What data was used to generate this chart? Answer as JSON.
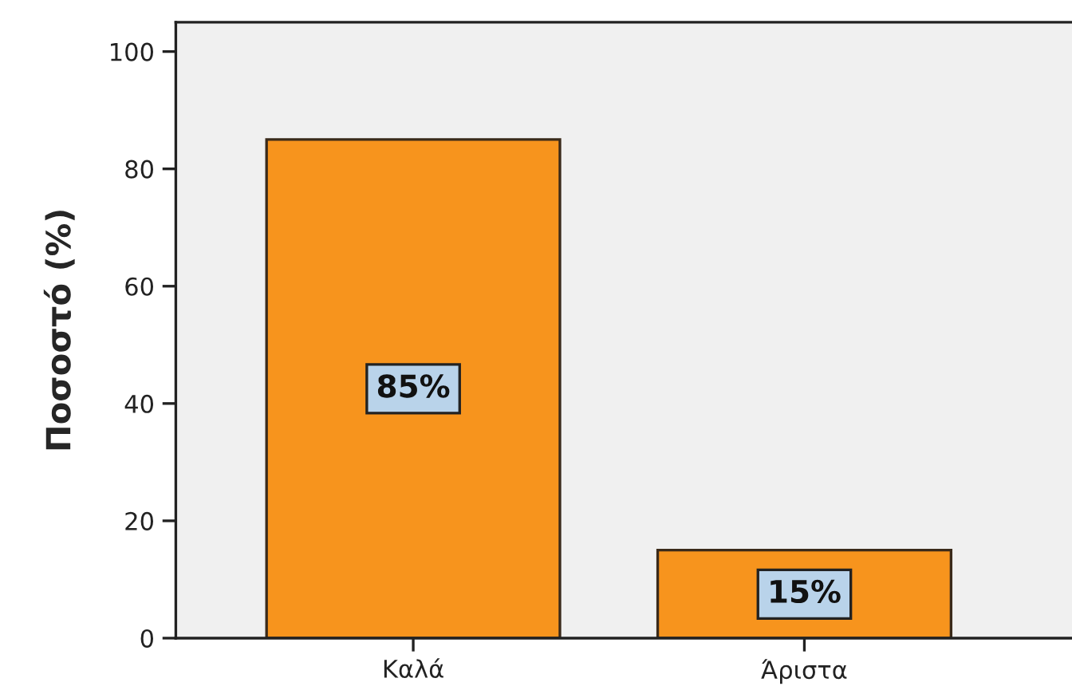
{
  "chart_data": {
    "type": "bar",
    "ylabel": "Ποσοστό (%)",
    "categories": [
      "Καλά",
      "Άριστα"
    ],
    "values": [
      85,
      15
    ],
    "value_labels": [
      "85%",
      "15%"
    ],
    "color": "#f7941d",
    "ylim": [
      0,
      105
    ],
    "yticks": [
      0,
      20,
      40,
      60,
      80,
      100
    ],
    "grid": false
  }
}
